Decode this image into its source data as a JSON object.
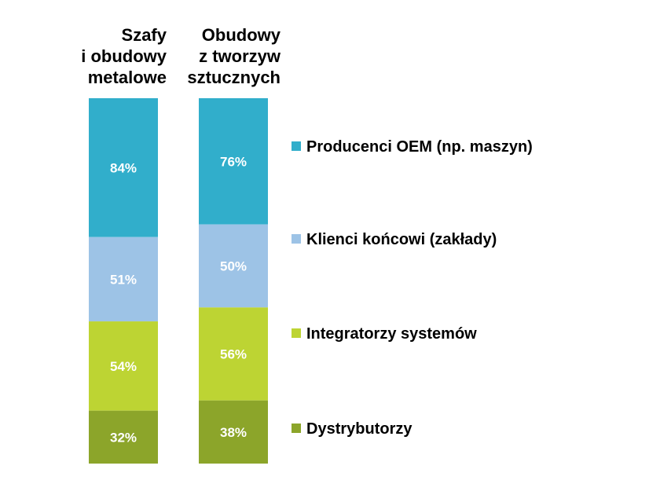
{
  "chart_data": {
    "type": "bar",
    "stacked": true,
    "categories": [
      [
        "Szafy",
        "i obudowy",
        "metalowe"
      ],
      [
        "Obudowy",
        "z tworzyw",
        "sztucznych"
      ]
    ],
    "series": [
      {
        "name": "Producenci OEM (np. maszyn)",
        "color": "#31AECB",
        "values": [
          84,
          76
        ],
        "labels": [
          "84%",
          "76%"
        ]
      },
      {
        "name": "Klienci końcowi (zakłady)",
        "color": "#9DC3E6",
        "values": [
          51,
          50
        ],
        "labels": [
          "51%",
          "50%"
        ]
      },
      {
        "name": "Integratorzy systemów",
        "color": "#BDD433",
        "values": [
          54,
          56
        ],
        "labels": [
          "54%",
          "56%"
        ]
      },
      {
        "name": "Dystrybutorzy",
        "color": "#8CA52A",
        "values": [
          32,
          38
        ],
        "labels": [
          "32%",
          "38%"
        ]
      }
    ],
    "title": "",
    "xlabel": "",
    "ylabel": "",
    "grid": false,
    "legend": "right"
  }
}
